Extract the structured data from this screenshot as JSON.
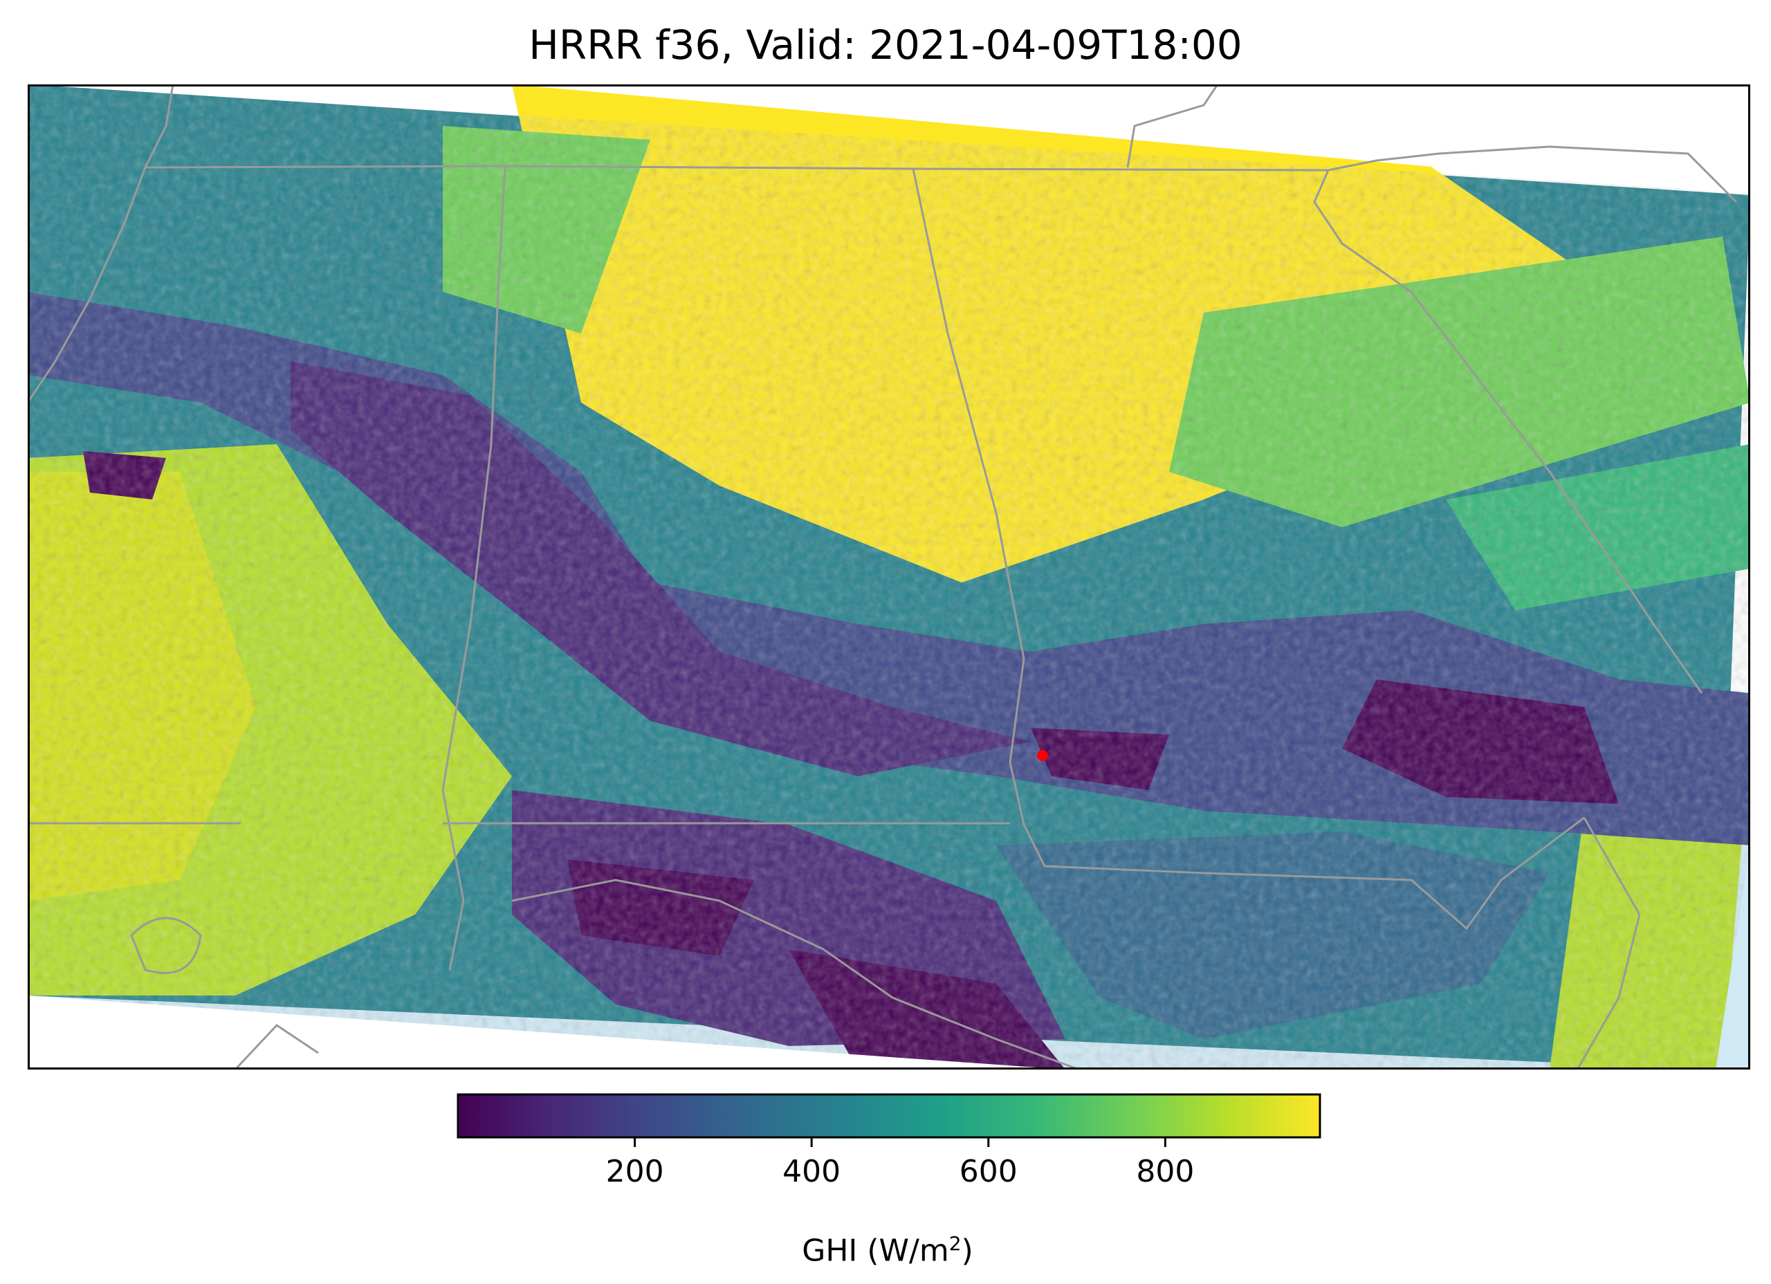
{
  "title": "HRRR f36, Valid: 2021-04-09T18:00",
  "variable": "GHI",
  "colorbar": {
    "label_text": "GHI (W/m",
    "label_sup": "2",
    "label_close": ")",
    "range": [
      0,
      975
    ],
    "ticks": [
      200,
      400,
      600,
      800
    ],
    "colormap": "viridis",
    "colormap_stops": [
      "#440154",
      "#482878",
      "#3e4989",
      "#31688e",
      "#26828e",
      "#1f9e89",
      "#35b779",
      "#6ece58",
      "#b5de2b",
      "#fde725"
    ]
  },
  "colors": {
    "water": "#cfe9f5",
    "land_outside": "#ffffff",
    "state_border": "#9a9a9a",
    "marker": "#ff0000"
  },
  "marker": {
    "name": "site",
    "color": "#ff0000"
  }
}
